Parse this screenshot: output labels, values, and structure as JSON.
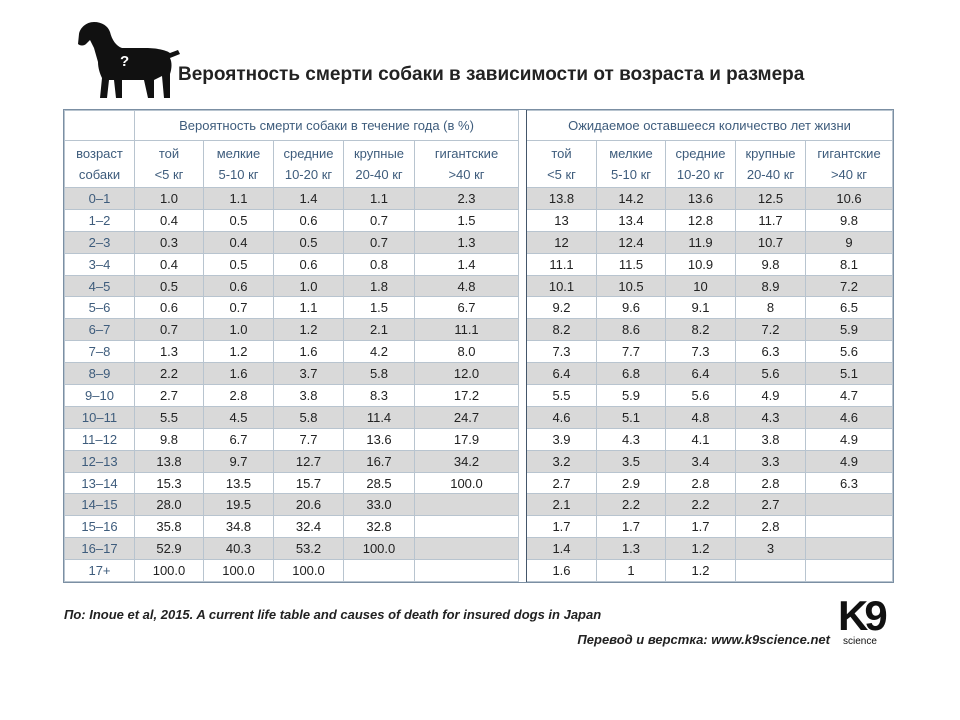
{
  "title": "Вероятность смерти собаки в зависимости от возраста и размера",
  "icon_mark": "?",
  "table": {
    "corner": [
      "возраст",
      "собаки"
    ],
    "groups": [
      "Вероятность смерти собаки в течение года (в %)",
      "Ожидаемое оставшееся количество лет жизни"
    ],
    "columns": [
      [
        "той",
        "<5 кг"
      ],
      [
        "мелкие",
        "5-10 кг"
      ],
      [
        "средние",
        "10-20 кг"
      ],
      [
        "крупные",
        "20-40 кг"
      ],
      [
        "гигантские",
        ">40 кг"
      ]
    ],
    "rows": [
      {
        "age": "0–1",
        "death": [
          "1.0",
          "1.1",
          "1.4",
          "1.1",
          "2.3"
        ],
        "life": [
          "13.8",
          "14.2",
          "13.6",
          "12.5",
          "10.6"
        ]
      },
      {
        "age": "1–2",
        "death": [
          "0.4",
          "0.5",
          "0.6",
          "0.7",
          "1.5"
        ],
        "life": [
          "13",
          "13.4",
          "12.8",
          "11.7",
          "9.8"
        ]
      },
      {
        "age": "2–3",
        "death": [
          "0.3",
          "0.4",
          "0.5",
          "0.7",
          "1.3"
        ],
        "life": [
          "12",
          "12.4",
          "11.9",
          "10.7",
          "9"
        ]
      },
      {
        "age": "3–4",
        "death": [
          "0.4",
          "0.5",
          "0.6",
          "0.8",
          "1.4"
        ],
        "life": [
          "11.1",
          "11.5",
          "10.9",
          "9.8",
          "8.1"
        ]
      },
      {
        "age": "4–5",
        "death": [
          "0.5",
          "0.6",
          "1.0",
          "1.8",
          "4.8"
        ],
        "life": [
          "10.1",
          "10.5",
          "10",
          "8.9",
          "7.2"
        ]
      },
      {
        "age": "5–6",
        "death": [
          "0.6",
          "0.7",
          "1.1",
          "1.5",
          "6.7"
        ],
        "life": [
          "9.2",
          "9.6",
          "9.1",
          "8",
          "6.5"
        ]
      },
      {
        "age": "6–7",
        "death": [
          "0.7",
          "1.0",
          "1.2",
          "2.1",
          "11.1"
        ],
        "life": [
          "8.2",
          "8.6",
          "8.2",
          "7.2",
          "5.9"
        ]
      },
      {
        "age": "7–8",
        "death": [
          "1.3",
          "1.2",
          "1.6",
          "4.2",
          "8.0"
        ],
        "life": [
          "7.3",
          "7.7",
          "7.3",
          "6.3",
          "5.6"
        ]
      },
      {
        "age": "8–9",
        "death": [
          "2.2",
          "1.6",
          "3.7",
          "5.8",
          "12.0"
        ],
        "life": [
          "6.4",
          "6.8",
          "6.4",
          "5.6",
          "5.1"
        ]
      },
      {
        "age": "9–10",
        "death": [
          "2.7",
          "2.8",
          "3.8",
          "8.3",
          "17.2"
        ],
        "life": [
          "5.5",
          "5.9",
          "5.6",
          "4.9",
          "4.7"
        ]
      },
      {
        "age": "10–11",
        "death": [
          "5.5",
          "4.5",
          "5.8",
          "11.4",
          "24.7"
        ],
        "life": [
          "4.6",
          "5.1",
          "4.8",
          "4.3",
          "4.6"
        ]
      },
      {
        "age": "11–12",
        "death": [
          "9.8",
          "6.7",
          "7.7",
          "13.6",
          "17.9"
        ],
        "life": [
          "3.9",
          "4.3",
          "4.1",
          "3.8",
          "4.9"
        ]
      },
      {
        "age": "12–13",
        "death": [
          "13.8",
          "9.7",
          "12.7",
          "16.7",
          "34.2"
        ],
        "life": [
          "3.2",
          "3.5",
          "3.4",
          "3.3",
          "4.9"
        ]
      },
      {
        "age": "13–14",
        "death": [
          "15.3",
          "13.5",
          "15.7",
          "28.5",
          "100.0"
        ],
        "life": [
          "2.7",
          "2.9",
          "2.8",
          "2.8",
          "6.3"
        ]
      },
      {
        "age": "14–15",
        "death": [
          "28.0",
          "19.5",
          "20.6",
          "33.0"
        ],
        "life": [
          "2.1",
          "2.2",
          "2.2",
          "2.7"
        ]
      },
      {
        "age": "15–16",
        "death": [
          "35.8",
          "34.8",
          "32.4",
          "32.8"
        ],
        "life": [
          "1.7",
          "1.7",
          "1.7",
          "2.8"
        ]
      },
      {
        "age": "16–17",
        "death": [
          "52.9",
          "40.3",
          "53.2",
          "100.0"
        ],
        "life": [
          "1.4",
          "1.3",
          "1.2",
          "3"
        ]
      },
      {
        "age": "17+",
        "death": [
          "100.0",
          "100.0",
          "100.0"
        ],
        "life": [
          "1.6",
          "1",
          "1.2"
        ]
      }
    ]
  },
  "footer": {
    "source": "По: Inoue et al, 2015. A current life table and causes of death for insured dogs in Japan",
    "credit": "Перевод и верстка: www.k9science.net"
  },
  "logo": {
    "mark": "K9",
    "text": "science"
  }
}
